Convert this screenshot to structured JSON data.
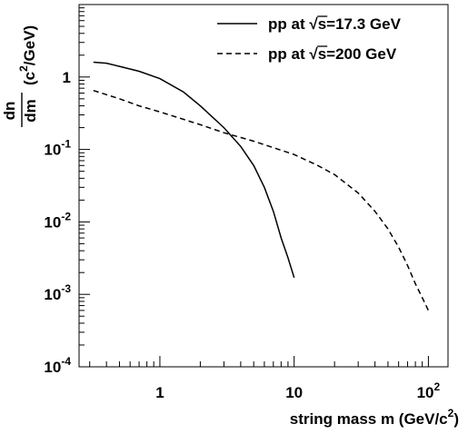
{
  "chart_data": {
    "type": "line",
    "title": "",
    "xscale": "log",
    "yscale": "log",
    "xlim": [
      0.25,
      140
    ],
    "ylim": [
      0.0001,
      10
    ],
    "xlabel": "string mass m (GeV/c²)",
    "xlabel_parts": {
      "main": "string mass m (GeV/c",
      "sup": "2",
      "close": ")"
    },
    "ylabel": "dn/dm (c²/GeV)",
    "ylabel_parts": {
      "num": "dn",
      "den": "dm",
      "unit_open": "(c",
      "unit_sup": "2",
      "unit_close": "/GeV)"
    },
    "x_tick_labels": [
      {
        "value": 1,
        "text": "1"
      },
      {
        "value": 10,
        "text": "10"
      },
      {
        "value": 100,
        "base": "10",
        "sup": "2"
      }
    ],
    "y_tick_labels": [
      {
        "value": 1,
        "text": "1"
      },
      {
        "value": 0.1,
        "base": "10",
        "sup": "-1"
      },
      {
        "value": 0.01,
        "base": "10",
        "sup": "-2"
      },
      {
        "value": 0.001,
        "base": "10",
        "sup": "-3"
      },
      {
        "value": 0.0001,
        "base": "10",
        "sup": "-4"
      }
    ],
    "grid": false,
    "legend_position": "top-right",
    "series": [
      {
        "name": "pp at √s=17.3 GeV",
        "legend_parts": {
          "pre": "pp at ",
          "root": "s",
          "post": "=17.3 GeV"
        },
        "style": "solid",
        "x": [
          0.32,
          0.4,
          0.5,
          0.7,
          1.0,
          1.5,
          2.0,
          3.0,
          4.0,
          5.0,
          6.0,
          7.0,
          8.0,
          9.0,
          10.0
        ],
        "y": [
          1.6,
          1.55,
          1.4,
          1.2,
          0.95,
          0.62,
          0.4,
          0.2,
          0.11,
          0.06,
          0.03,
          0.014,
          0.006,
          0.0032,
          0.0017
        ]
      },
      {
        "name": "pp at √s=200  GeV",
        "legend_parts": {
          "pre": "pp at ",
          "root": "s",
          "post": "=200  GeV"
        },
        "style": "dashed",
        "x": [
          0.32,
          0.5,
          0.7,
          1.0,
          2.0,
          3.0,
          5.0,
          10.0,
          15.0,
          20.0,
          30.0,
          40.0,
          50.0,
          60.0,
          70.0,
          80.0,
          90.0,
          100.0
        ],
        "y": [
          0.65,
          0.5,
          0.4,
          0.33,
          0.22,
          0.17,
          0.13,
          0.085,
          0.06,
          0.045,
          0.025,
          0.014,
          0.008,
          0.0045,
          0.0025,
          0.0014,
          0.0009,
          0.0006
        ]
      }
    ]
  }
}
